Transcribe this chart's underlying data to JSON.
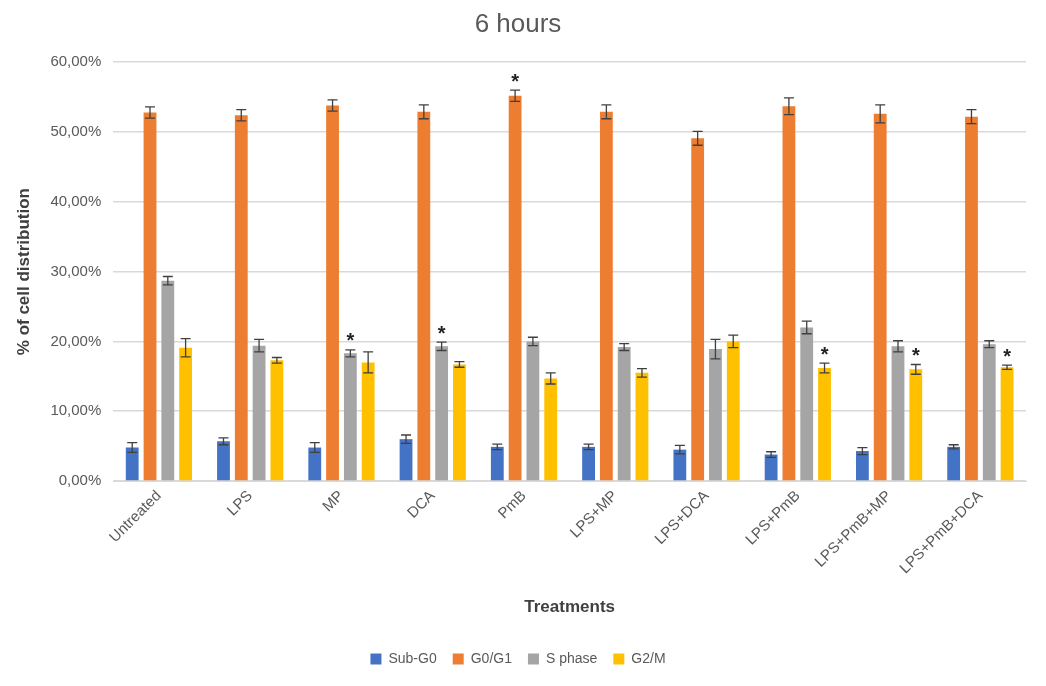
{
  "chart_data": {
    "type": "bar",
    "title": "6 hours",
    "xlabel": "Treatments",
    "ylabel": "% of cell distribution",
    "categories": [
      "Untreated",
      "LPS",
      "MP",
      "DCA",
      "PmB",
      "LPS+MP",
      "LPS+DCA",
      "LPS+PmB",
      "LPS+PmB+MP",
      "LPS+PmB+DCA"
    ],
    "series": [
      {
        "name": "Sub-G0",
        "color": "#4472c4",
        "values": [
          4.8,
          5.7,
          4.8,
          6.0,
          4.9,
          4.9,
          4.5,
          3.8,
          4.3,
          4.9
        ],
        "errors": [
          0.7,
          0.5,
          0.7,
          0.6,
          0.4,
          0.4,
          0.6,
          0.4,
          0.5,
          0.3
        ]
      },
      {
        "name": "G0/G1",
        "color": "#ed7d31",
        "values": [
          52.8,
          52.4,
          53.8,
          52.9,
          55.2,
          52.9,
          49.1,
          53.7,
          52.6,
          52.2
        ],
        "errors": [
          0.8,
          0.8,
          0.8,
          1.0,
          0.8,
          1.0,
          1.0,
          1.2,
          1.3,
          1.0
        ]
      },
      {
        "name": "S phase",
        "color": "#a5a5a5",
        "values": [
          28.7,
          19.4,
          18.3,
          19.3,
          20.0,
          19.2,
          18.9,
          22.0,
          19.3,
          19.6
        ],
        "errors": [
          0.6,
          0.9,
          0.5,
          0.6,
          0.6,
          0.5,
          1.4,
          0.9,
          0.8,
          0.5
        ]
      },
      {
        "name": "G2/M",
        "color": "#ffc000",
        "values": [
          19.1,
          17.3,
          17.0,
          16.7,
          14.7,
          15.5,
          20.0,
          16.2,
          16.0,
          16.3
        ],
        "errors": [
          1.3,
          0.4,
          1.5,
          0.4,
          0.8,
          0.6,
          0.9,
          0.7,
          0.7,
          0.3
        ]
      }
    ],
    "ylim": [
      0,
      60
    ],
    "yticks": [
      {
        "value": 0,
        "label": "0,00%"
      },
      {
        "value": 10,
        "label": "10,00%"
      },
      {
        "value": 20,
        "label": "20,00%"
      },
      {
        "value": 30,
        "label": "30,00%"
      },
      {
        "value": 40,
        "label": "40,00%"
      },
      {
        "value": 50,
        "label": "50,00%"
      },
      {
        "value": 60,
        "label": "60,00%"
      }
    ],
    "grid": "y",
    "legend": "bottom",
    "annotations": [
      {
        "text": "*",
        "x": "MP",
        "y": 18.8
      },
      {
        "text": "*",
        "x": "DCA",
        "y": 19.9
      },
      {
        "text": "*",
        "x": "PmB",
        "y": 56.0
      },
      {
        "text": "*",
        "x": "LPS+PmB",
        "y": 16.9
      },
      {
        "text": "*",
        "x": "LPS+PmB+MP",
        "y": 16.7
      },
      {
        "text": "*",
        "x": "LPS+PmB+DCA",
        "y": 16.6
      }
    ]
  }
}
